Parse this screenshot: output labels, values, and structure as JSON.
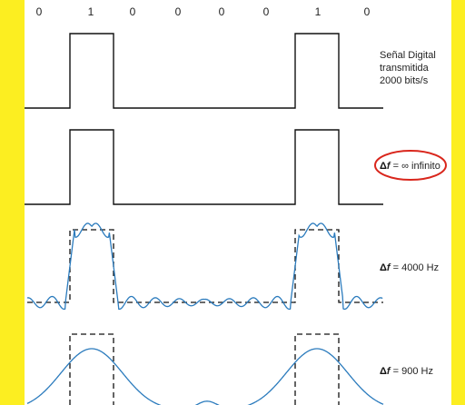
{
  "bits": [
    "0",
    "1",
    "0",
    "0",
    "0",
    "0",
    "1",
    "0"
  ],
  "labels": {
    "digital_line1": "Señal Digital",
    "digital_line2": "transmitida",
    "digital_line3": "2000 bits/s",
    "delta_symbol": "Δ",
    "f_symbol": "f",
    "infinite_text": " = ∞ infinito",
    "hz4000_text": " = 4000 Hz",
    "hz900_text": " = 900 Hz"
  },
  "colors": {
    "background": "#fcee21",
    "panel": "#ffffff",
    "signal": "#111111",
    "wave": "#2b7bbd",
    "highlight": "#d9261c"
  }
}
